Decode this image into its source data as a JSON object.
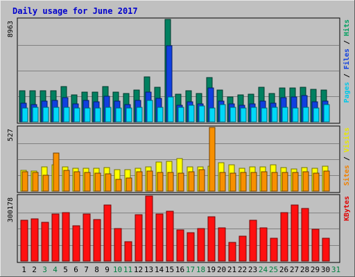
{
  "chart_data": {
    "type": "bar",
    "title": "Daily usage for June 2017",
    "days": [
      "1",
      "2",
      "3",
      "4",
      "5",
      "6",
      "7",
      "8",
      "9",
      "10",
      "11",
      "12",
      "13",
      "14",
      "15",
      "16",
      "17",
      "18",
      "19",
      "20",
      "21",
      "22",
      "23",
      "24",
      "25",
      "26",
      "27",
      "28",
      "29",
      "30",
      "31"
    ],
    "weekend_days": [
      "3",
      "4",
      "10",
      "11",
      "17",
      "18",
      "24",
      "25",
      "31"
    ],
    "panels": [
      {
        "id": "hits",
        "max_label": "8963",
        "ymax": 8963,
        "legend": [
          {
            "text": "Pages",
            "color": "#00c8e8"
          },
          {
            "text": " / ",
            "color": "#000000"
          },
          {
            "text": "Files",
            "color": "#1040e0"
          },
          {
            "text": " / ",
            "color": "#000000"
          },
          {
            "text": "Hits",
            "color": "#00a060"
          }
        ],
        "series": [
          {
            "name": "Hits",
            "color": "#008060",
            "values": [
              2750,
              2750,
              2750,
              2700,
              3100,
              2350,
              2600,
              2600,
              3100,
              2600,
              2500,
              2800,
              3950,
              3000,
              8950,
              2450,
              2700,
              2500,
              3850,
              2800,
              2150,
              2350,
              2400,
              3050,
              2500,
              2950,
              2950,
              3000,
              2850,
              2800,
              null
            ]
          },
          {
            "name": "Files",
            "color": "#1040e0",
            "values": [
              1650,
              1500,
              1800,
              1900,
              2100,
              1600,
              1850,
              1750,
              2250,
              1800,
              1500,
              1900,
              2600,
              2050,
              6650,
              1450,
              1750,
              1550,
              2950,
              1800,
              1550,
              1450,
              1550,
              1800,
              1650,
              2100,
              2200,
              2300,
              1750,
              1800,
              null
            ]
          },
          {
            "name": "Pages",
            "color": "#00d8f8",
            "values": [
              1200,
              1250,
              1250,
              1250,
              1250,
              1200,
              1200,
              1200,
              1250,
              1200,
              1200,
              1250,
              1850,
              1250,
              2150,
              1250,
              1450,
              1400,
              1200,
              1500,
              1300,
              1200,
              1300,
              1200,
              1300,
              1250,
              1200,
              1250,
              1200,
              1500,
              null
            ]
          }
        ]
      },
      {
        "id": "sites",
        "max_label": "527",
        "ymax": 527,
        "legend": [
          {
            "text": "Sites",
            "color": "#f08000"
          },
          {
            "text": " / ",
            "color": "#000000"
          },
          {
            "text": "Visits",
            "color": "#e8e800"
          }
        ],
        "series": [
          {
            "name": "Visits",
            "color": "#ffff00",
            "values": [
              170,
              165,
              200,
              215,
              200,
              190,
              190,
              190,
              195,
              175,
              175,
              190,
              200,
              240,
              245,
              270,
              200,
              200,
              205,
              235,
              215,
              190,
              200,
              200,
              220,
              195,
              185,
              195,
              190,
              205,
              null
            ]
          },
          {
            "name": "Sites",
            "color": "#f89000",
            "values": [
              160,
              155,
              130,
              315,
              170,
              160,
              155,
              150,
              145,
              100,
              110,
              160,
              165,
              155,
              155,
              150,
              160,
              175,
              527,
              155,
              150,
              155,
              155,
              160,
              155,
              155,
              155,
              160,
              150,
              165,
              null
            ]
          }
        ]
      },
      {
        "id": "kbytes",
        "max_label": "300178",
        "ymax": 300178,
        "legend": [
          {
            "text": "KBytes",
            "color": "#e00000"
          }
        ],
        "series": [
          {
            "name": "KBytes",
            "color": "#ff1010",
            "values": [
              188000,
              195000,
              178000,
              218000,
              225000,
              163000,
              218000,
              193000,
              258000,
              150000,
              88000,
              213000,
              300178,
              218000,
              230000,
              143000,
              132000,
              150000,
              203000,
              153000,
              85000,
              116000,
              190000,
              153000,
              106000,
              223000,
              258000,
              243000,
              148000,
              104000,
              null
            ]
          }
        ]
      }
    ],
    "colors": {
      "outer_bg": "#c0c0c0",
      "plot_bg": "#c0c0c0",
      "title_color": "#0000cc",
      "gridline": "#808080",
      "weekday_label": "#000000",
      "weekend_label": "#008040"
    }
  }
}
